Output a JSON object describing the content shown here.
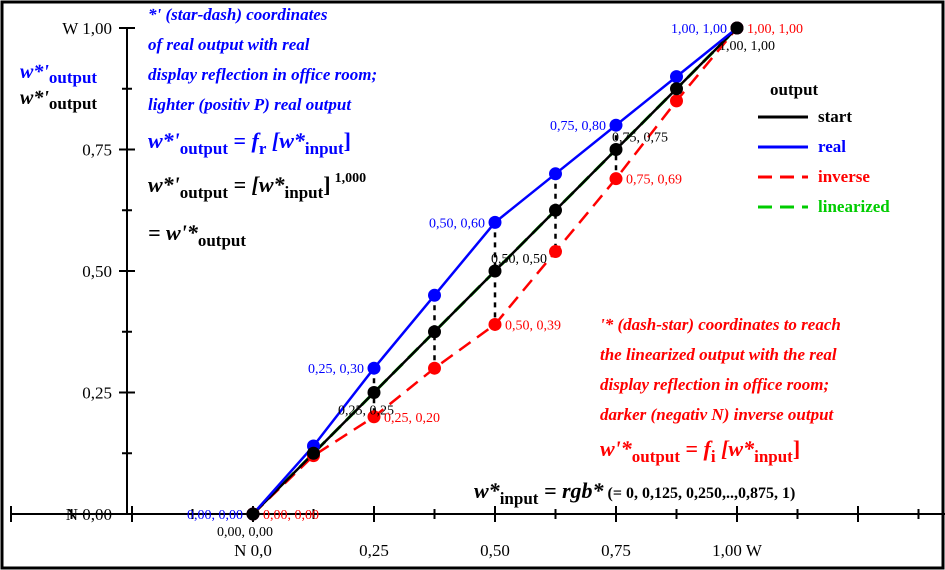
{
  "chart_data": {
    "type": "line",
    "series": [
      {
        "name": "start",
        "color": "#000000",
        "dash": "solid",
        "x": [
          0,
          0.125,
          0.25,
          0.375,
          0.5,
          0.625,
          0.75,
          0.875,
          1.0
        ],
        "y": [
          0,
          0.125,
          0.25,
          0.375,
          0.5,
          0.625,
          0.75,
          0.875,
          1.0
        ]
      },
      {
        "name": "real",
        "color": "#0000ff",
        "dash": "solid",
        "x": [
          0,
          0.125,
          0.25,
          0.375,
          0.5,
          0.625,
          0.75,
          0.875,
          1.0
        ],
        "y": [
          0,
          0.14,
          0.3,
          0.45,
          0.6,
          0.7,
          0.8,
          0.9,
          1.0
        ]
      },
      {
        "name": "inverse",
        "color": "#ff0000",
        "dash": "dashed",
        "x": [
          0,
          0.125,
          0.25,
          0.375,
          0.5,
          0.625,
          0.75,
          0.875,
          1.0
        ],
        "y": [
          0,
          0.12,
          0.2,
          0.3,
          0.39,
          0.54,
          0.69,
          0.85,
          1.0
        ]
      },
      {
        "name": "linearized",
        "color": "#00cc00",
        "dash": "dashed",
        "x": [
          0,
          1.0
        ],
        "y": [
          0,
          1.0
        ]
      }
    ],
    "xlim": [
      -0.5,
      1.5
    ],
    "ylim": [
      0,
      1.0
    ],
    "x_ticks": [
      {
        "value": 0,
        "label": "N  0,0"
      },
      {
        "value": 0.25,
        "label": "0,25"
      },
      {
        "value": 0.5,
        "label": "0,50"
      },
      {
        "value": 0.75,
        "label": "0,75"
      },
      {
        "value": 1.0,
        "label": "1,00  W"
      }
    ],
    "y_ticks": [
      {
        "value": 0,
        "label": "N 0,00"
      },
      {
        "value": 0.25,
        "label": "0,25"
      },
      {
        "value": 0.5,
        "label": "0,50"
      },
      {
        "value": 0.75,
        "label": "0,75"
      },
      {
        "value": 1.0,
        "label": "W 1,00"
      }
    ],
    "point_labels": [
      {
        "x": 0,
        "y": 0,
        "text": "0,00, 0,00",
        "color": "#0000ff",
        "side": "left"
      },
      {
        "x": 0,
        "y": 0,
        "text": "0,00, 0,00",
        "color": "#ff0000",
        "side": "right"
      },
      {
        "x": 0,
        "y": 0,
        "text": "0,00, 0,00",
        "color": "#000000",
        "side": "below"
      },
      {
        "x": 0.25,
        "y": 0.3,
        "text": "0,25, 0,30",
        "color": "#0000ff",
        "side": "left"
      },
      {
        "x": 0.25,
        "y": 0.25,
        "text": "0,25, 0,25",
        "color": "#000000",
        "side": "below"
      },
      {
        "x": 0.25,
        "y": 0.2,
        "text": "0,25, 0,20",
        "color": "#ff0000",
        "side": "right"
      },
      {
        "x": 0.5,
        "y": 0.6,
        "text": "0,50, 0,60",
        "color": "#0000ff",
        "side": "left"
      },
      {
        "x": 0.5,
        "y": 0.5,
        "text": "0,50, 0,50",
        "color": "#000000",
        "side": "above"
      },
      {
        "x": 0.5,
        "y": 0.39,
        "text": "0,50, 0,39",
        "color": "#ff0000",
        "side": "right"
      },
      {
        "x": 0.75,
        "y": 0.8,
        "text": "0,75, 0,80",
        "color": "#0000ff",
        "side": "left"
      },
      {
        "x": 0.75,
        "y": 0.75,
        "text": "0,75, 0,75",
        "color": "#000000",
        "side": "above"
      },
      {
        "x": 0.75,
        "y": 0.69,
        "text": "0,75, 0,69",
        "color": "#ff0000",
        "side": "right"
      },
      {
        "x": 1.0,
        "y": 1.0,
        "text": "1,00, 1,00",
        "color": "#0000ff",
        "side": "left"
      },
      {
        "x": 1.0,
        "y": 1.0,
        "text": "1,00, 1,00",
        "color": "#ff0000",
        "side": "right"
      },
      {
        "x": 1.0,
        "y": 1.0,
        "text": "1,00, 1,00",
        "color": "#000000",
        "side": "below"
      }
    ],
    "legend": {
      "title": "output",
      "placement": "top-right",
      "items": [
        "start",
        "real",
        "inverse",
        "linearized"
      ]
    }
  },
  "annotations": {
    "blue_text": {
      "line1": "*' (star-dash) coordinates",
      "line2": "of real output with real",
      "line3": "display reflection in office room;",
      "line4": "lighter (positiv P) real output"
    },
    "ylabel_blue": {
      "main": "w*'",
      "sub": "output"
    },
    "ylabel_black": {
      "main": "w*'",
      "sub": "output"
    },
    "formula_real": {
      "lhs": "w*'",
      "lhs_sub": "output",
      "eq": " = ",
      "f": "f",
      "f_sub": "r",
      "arg": " [w*",
      "arg_sub": "input",
      "close": "]"
    },
    "formula_power": {
      "lhs": "w*'",
      "lhs_sub": "output",
      "eq": " = [w*",
      "arg_sub": "input",
      "close": "]",
      "exp": "1,000"
    },
    "formula_equal": {
      "prefix": "= w'*",
      "sub": "output"
    },
    "red_text": {
      "line1": "'* (dash-star) coordinates to reach",
      "line2": "the linearized output with the real",
      "line3": "display reflection in office room;",
      "line4": "darker (negativ N) inverse output"
    },
    "formula_inverse": {
      "lhs": "w'*",
      "lhs_sub": "output",
      "eq": " = ",
      "f": "f",
      "f_sub": "i",
      "arg": " [w*",
      "arg_sub": "input",
      "close": "]"
    },
    "formula_input": {
      "lhs": "w*",
      "lhs_sub": "input",
      "eq": " = rgb*",
      "values": " (= 0, 0,125, 0,250,..,0,875, 1)"
    }
  }
}
